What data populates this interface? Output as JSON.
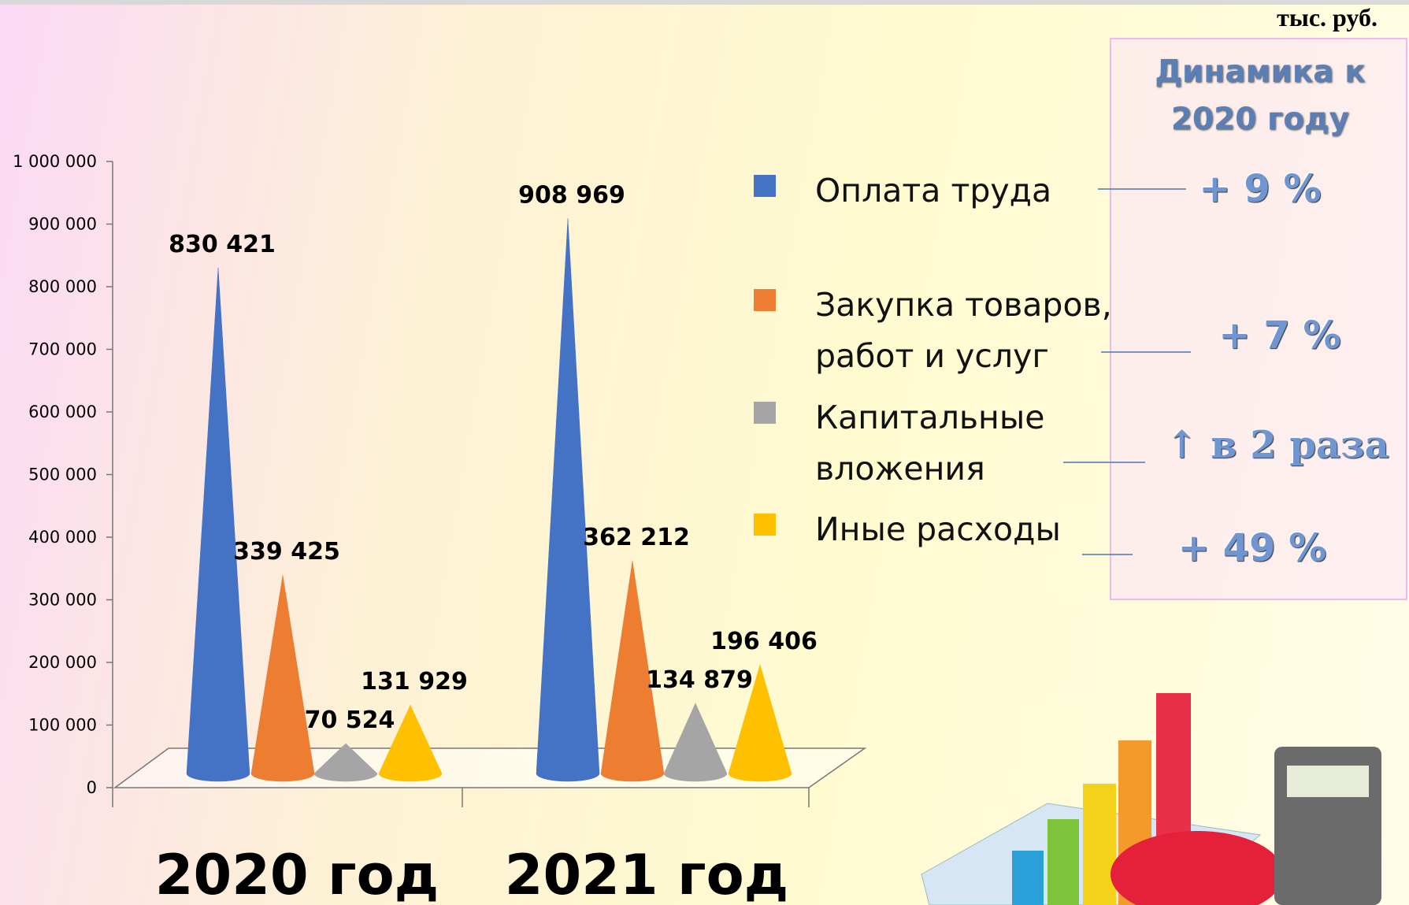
{
  "chart_data": {
    "type": "cone",
    "unit": "тыс. руб.",
    "categories": [
      "2020 год",
      "2021 год"
    ],
    "series": [
      {
        "name": "Оплата труда",
        "color": "#4472c4",
        "values": [
          830421,
          908969
        ],
        "value_labels": [
          "830 421",
          "908 969"
        ]
      },
      {
        "name": "Закупка товаров, работ и услуг",
        "color": "#ed7d31",
        "values": [
          339425,
          362212
        ],
        "value_labels": [
          "339 425",
          "362 212"
        ]
      },
      {
        "name": "Капитальные вложения",
        "color": "#a5a5a5",
        "values": [
          70524,
          134879
        ],
        "value_labels": [
          "70 524",
          "134 879"
        ]
      },
      {
        "name": "Иные расходы",
        "color": "#ffc000",
        "values": [
          131929,
          196406
        ],
        "value_labels": [
          "131 929",
          "196 406"
        ]
      }
    ],
    "ylim": [
      0,
      1000000
    ],
    "yticks": [
      0,
      {
        "value": 100000,
        "label": "100 000"
      },
      {
        "value": 200000,
        "label": "200 000"
      },
      {
        "value": 300000,
        "label": "300 000"
      },
      {
        "value": 400000,
        "label": "400 000"
      },
      {
        "value": 500000,
        "label": "500 000"
      },
      {
        "value": 600000,
        "label": "600 000"
      },
      {
        "value": 700000,
        "label": "700 000"
      },
      {
        "value": 800000,
        "label": "800 000"
      },
      {
        "value": 900000,
        "label": "900 000"
      },
      {
        "value": 1000000,
        "label": "1 000 000"
      }
    ],
    "dynamics_title": "Динамика к 2020 году",
    "dynamics": [
      "+ 9 %",
      "+ 7 %",
      "↑ в 2 раза",
      "+ 49 %"
    ]
  }
}
